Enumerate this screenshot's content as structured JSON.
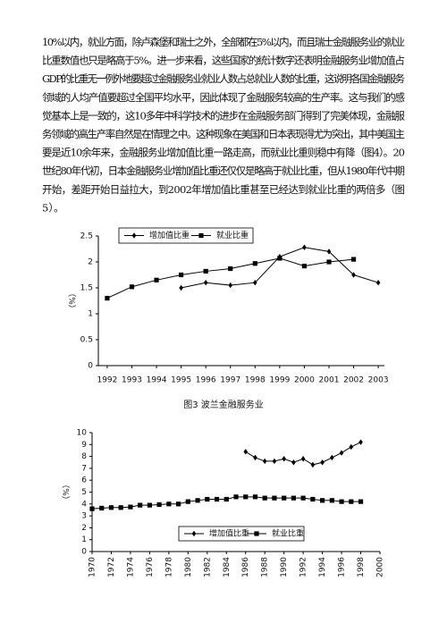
{
  "paragraph_lines": [
    "10%以内，就业方面，除卢森堡和瑞士之外，全部都在5%以内，而且瑞士金融服务业的就业",
    "比重数值也只是略高于5%。进一步来看，这些国家的统计数字还表明金融服务业增加值占",
    "GDP的比重无一例外地要超过金融服务业就业人数占总就业人数的比重，这说明各国金融服务",
    "领域的人均产值要超过全国平均水平，因此体现了金融服务较高的生产率。这与我们的感",
    "觉基本上是一致的，这10多年中科学技术的进步在金融服务部门得到了完美体现，金融服",
    "务领域的高生产率自然是在情理之中。这种现象在美国和日本表现得尤为突出，其中美国主",
    "要是近10余年来，金融服务业增加值比重一路走高，而就业比重则稳中有降（图4）。20",
    "世纪80年代初，日本金融服务业增加值比重还仅仅是略高于就业比重，但从1980年代中期",
    "开始，差距开始日益拉大，到2002年增加值比重甚至已经达到就业比重的两倍多（图",
    "5）。"
  ],
  "chart_data": [
    {
      "type": "line",
      "caption": "图3 波兰金融服务业",
      "y_label": "（%）",
      "legend": "top",
      "x": [
        1992,
        1993,
        1994,
        1995,
        1996,
        1997,
        1998,
        1999,
        2000,
        2001,
        2002,
        2003
      ],
      "xlim": [
        1991.64,
        2003.25
      ],
      "xticks": [
        1992,
        1993,
        1994,
        1995,
        1996,
        1997,
        1998,
        1999,
        2000,
        2001,
        2002,
        2003
      ],
      "ylim": [
        0,
        2.5
      ],
      "yticks": [
        0,
        0.5,
        1,
        1.5,
        2,
        2.5
      ],
      "series": [
        {
          "name": "增加值比重",
          "color": "#000000",
          "marker": "diamond",
          "values": [
            null,
            null,
            null,
            1.5,
            1.6,
            1.55,
            1.6,
            2.1,
            2.28,
            2.2,
            1.75,
            1.6
          ]
        },
        {
          "name": "就业比重",
          "color": "#000000",
          "marker": "square",
          "values": [
            1.3,
            1.52,
            1.65,
            1.75,
            1.82,
            1.87,
            1.97,
            2.07,
            1.92,
            2.0,
            2.05,
            null
          ]
        }
      ]
    },
    {
      "type": "line",
      "y_label": "（%）",
      "legend": "bottom",
      "x": [
        1970,
        1971,
        1972,
        1973,
        1974,
        1975,
        1976,
        1977,
        1978,
        1979,
        1980,
        1981,
        1982,
        1983,
        1984,
        1985,
        1986,
        1987,
        1988,
        1989,
        1990,
        1991,
        1992,
        1993,
        1994,
        1995,
        1996,
        1997,
        1998
      ],
      "xlim": [
        1970,
        2000
      ],
      "xticks": [
        1970,
        1972,
        1974,
        1976,
        1978,
        1980,
        1982,
        1984,
        1986,
        1988,
        1990,
        1992,
        1994,
        1996,
        1998,
        2000
      ],
      "ylim": [
        0,
        10
      ],
      "yticks": [
        0,
        1,
        2,
        3,
        4,
        5,
        6,
        7,
        8,
        9,
        10
      ],
      "series": [
        {
          "name": "增加值比重",
          "color": "#000000",
          "marker": "diamond",
          "values": [
            null,
            null,
            null,
            null,
            null,
            null,
            null,
            null,
            null,
            null,
            null,
            null,
            null,
            null,
            null,
            null,
            8.4,
            7.9,
            7.6,
            7.6,
            7.8,
            7.5,
            7.8,
            7.3,
            7.5,
            7.9,
            8.3,
            8.8,
            9.2
          ]
        },
        {
          "name": "就业比重",
          "color": "#000000",
          "marker": "square",
          "values": [
            3.6,
            3.65,
            3.7,
            3.7,
            3.75,
            3.9,
            3.9,
            3.95,
            4.0,
            4.0,
            4.2,
            4.3,
            4.4,
            4.4,
            4.4,
            4.6,
            4.6,
            4.6,
            4.5,
            4.5,
            4.5,
            4.5,
            4.5,
            4.4,
            4.3,
            4.3,
            4.2,
            4.2,
            4.2
          ]
        }
      ]
    }
  ]
}
